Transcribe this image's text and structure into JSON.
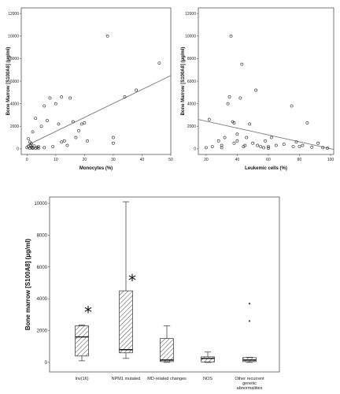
{
  "chart_data": [
    {
      "type": "scatter",
      "xlabel": "Monocytes (%)",
      "ylabel": "Bone Marrow [S100A8] (µg/ml)",
      "xlim": [
        -2,
        50
      ],
      "ylim": [
        -500,
        12500
      ],
      "x_ticks": [
        0,
        10,
        20,
        30,
        40,
        50
      ],
      "y_ticks": [
        0,
        2000,
        4000,
        6000,
        8000,
        10000,
        12000
      ],
      "trend_line": {
        "x": [
          0,
          50
        ],
        "y": [
          300,
          6500
        ]
      },
      "points": [
        [
          0,
          100
        ],
        [
          0.5,
          200
        ],
        [
          1,
          50
        ],
        [
          1.2,
          300
        ],
        [
          1.5,
          150
        ],
        [
          2,
          100
        ],
        [
          2.5,
          250
        ],
        [
          3,
          50
        ],
        [
          3.5,
          120
        ],
        [
          4,
          200
        ],
        [
          1,
          600
        ],
        [
          0.5,
          900
        ],
        [
          2,
          1500
        ],
        [
          3,
          2700
        ],
        [
          5,
          2000
        ],
        [
          6,
          3800
        ],
        [
          7,
          2500
        ],
        [
          8,
          4500
        ],
        [
          10,
          4000
        ],
        [
          11,
          2200
        ],
        [
          12,
          4600
        ],
        [
          12,
          600
        ],
        [
          13,
          700
        ],
        [
          14,
          300
        ],
        [
          15,
          4500
        ],
        [
          16,
          2400
        ],
        [
          17,
          1000
        ],
        [
          18,
          1600
        ],
        [
          19,
          2200
        ],
        [
          20,
          2300
        ],
        [
          21,
          700
        ],
        [
          28,
          10000
        ],
        [
          30,
          500
        ],
        [
          30,
          1000
        ],
        [
          34,
          4600
        ],
        [
          38,
          5200
        ],
        [
          46,
          7600
        ],
        [
          2,
          50
        ],
        [
          4,
          50
        ],
        [
          6,
          100
        ],
        [
          9,
          200
        ],
        [
          1.5,
          450
        ]
      ]
    },
    {
      "type": "scatter",
      "xlabel": "Leukemic cells (%)",
      "ylabel": "Bone Marrow [S100A8] (µg/ml)",
      "xlim": [
        15,
        102
      ],
      "ylim": [
        -500,
        12500
      ],
      "x_ticks": [
        20,
        40,
        60,
        80,
        100
      ],
      "y_ticks": [
        0,
        2000,
        4000,
        6000,
        8000,
        10000,
        12000
      ],
      "trend_line": {
        "x": [
          15,
          102
        ],
        "y": [
          2600,
          -50
        ]
      },
      "points": [
        [
          20,
          100
        ],
        [
          22,
          2600
        ],
        [
          24,
          200
        ],
        [
          28,
          700
        ],
        [
          30,
          300
        ],
        [
          32,
          1000
        ],
        [
          34,
          4000
        ],
        [
          35,
          4600
        ],
        [
          36,
          10000
        ],
        [
          37,
          2400
        ],
        [
          38,
          2300
        ],
        [
          38,
          500
        ],
        [
          40,
          1300
        ],
        [
          40,
          700
        ],
        [
          42,
          4500
        ],
        [
          43,
          7500
        ],
        [
          44,
          200
        ],
        [
          45,
          300
        ],
        [
          46,
          1000
        ],
        [
          48,
          2200
        ],
        [
          50,
          500
        ],
        [
          52,
          5200
        ],
        [
          53,
          300
        ],
        [
          55,
          200
        ],
        [
          58,
          700
        ],
        [
          60,
          200
        ],
        [
          62,
          1000
        ],
        [
          65,
          300
        ],
        [
          70,
          400
        ],
        [
          75,
          3800
        ],
        [
          76,
          200
        ],
        [
          78,
          600
        ],
        [
          80,
          200
        ],
        [
          82,
          300
        ],
        [
          85,
          2300
        ],
        [
          88,
          150
        ],
        [
          92,
          500
        ],
        [
          95,
          100
        ],
        [
          98,
          50
        ],
        [
          57,
          100
        ],
        [
          60,
          50
        ],
        [
          30,
          100
        ]
      ]
    },
    {
      "type": "box",
      "ylabel": "Bone marrow [S100A8] (µg/ml)",
      "ylim": [
        -600,
        10400
      ],
      "y_ticks": [
        0,
        2000,
        4000,
        6000,
        8000,
        10000
      ],
      "categories": [
        "Inv(16)",
        "NPM1 mutated",
        "MD-related changes",
        "NOS",
        "Other recurrent genetic abnormalities"
      ],
      "boxes": [
        {
          "min": 100,
          "q1": 400,
          "median": 1600,
          "q3": 2300,
          "max": 2350,
          "outliers": [],
          "extremes": [
            3200
          ]
        },
        {
          "min": 250,
          "q1": 600,
          "median": 800,
          "q3": 4500,
          "max": 10100,
          "outliers": [],
          "extremes": [
            5200
          ]
        },
        {
          "min": 0,
          "q1": 50,
          "median": 150,
          "q3": 1500,
          "max": 2300,
          "outliers": [],
          "extremes": []
        },
        {
          "min": 0,
          "q1": 30,
          "median": 250,
          "q3": 350,
          "max": 650,
          "outliers": [],
          "extremes": []
        },
        {
          "min": 0,
          "q1": 50,
          "median": 150,
          "q3": 300,
          "max": 320,
          "outliers": [
            2600,
            3700
          ],
          "extremes": []
        }
      ]
    }
  ]
}
